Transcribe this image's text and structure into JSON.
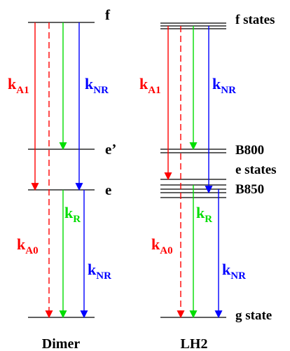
{
  "colors": {
    "level": "#000000",
    "red": "#ff0000",
    "green": "#00dd00",
    "blue": "#0000ff"
  },
  "dimer": {
    "title": "Dimer",
    "levels": {
      "f": "f",
      "e_prime": "e’",
      "e": "e"
    },
    "rates": {
      "kA1": {
        "k": "k",
        "sub": "A1"
      },
      "kNR_top": {
        "k": "k",
        "sub": "NR"
      },
      "kR": {
        "k": "k",
        "sub": "R"
      },
      "kA0": {
        "k": "k",
        "sub": "A0"
      },
      "kNR_bottom": {
        "k": "k",
        "sub": "NR"
      }
    }
  },
  "lh2": {
    "title": "LH2",
    "levels": {
      "f_states": "f states",
      "b800": "B800",
      "e_states": "e states",
      "b850": "B850",
      "g_state": "g state"
    },
    "rates": {
      "kA1": {
        "k": "k",
        "sub": "A1"
      },
      "kNR_top": {
        "k": "k",
        "sub": "NR"
      },
      "kR": {
        "k": "k",
        "sub": "R"
      },
      "kA0": {
        "k": "k",
        "sub": "A0"
      },
      "kNR_bottom": {
        "k": "k",
        "sub": "NR"
      }
    }
  }
}
